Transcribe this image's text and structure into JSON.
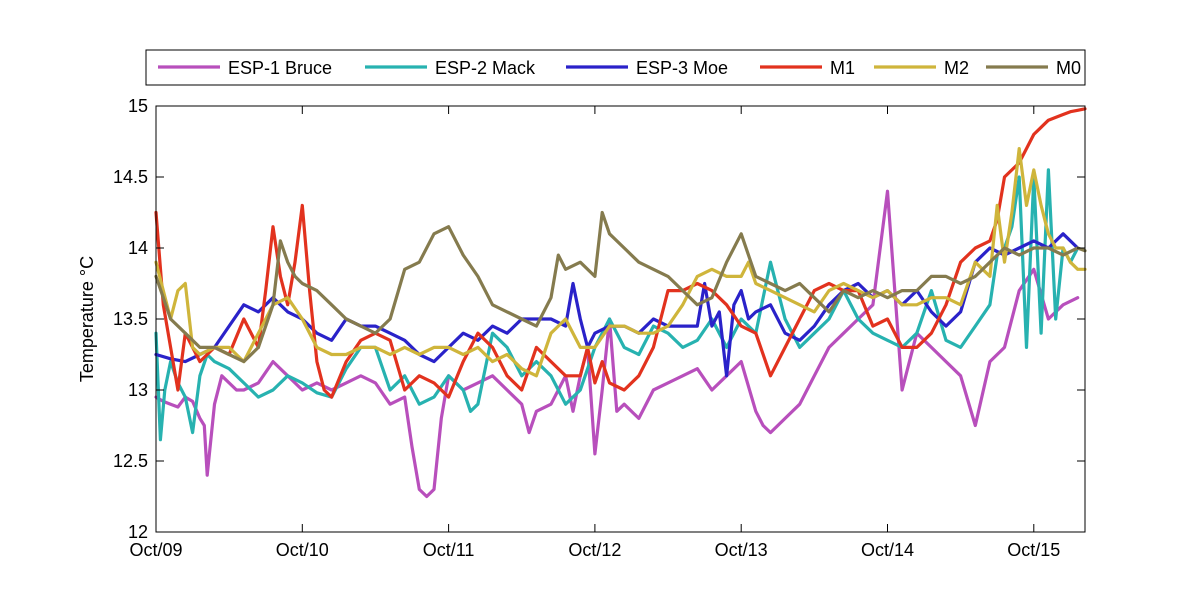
{
  "chart_data": {
    "type": "line",
    "title": "",
    "xlabel": "",
    "ylabel": "Temperature °C",
    "ylim": [
      12,
      15
    ],
    "xlim": [
      0,
      6.35
    ],
    "x_ticks": [
      0,
      1,
      2,
      3,
      4,
      5,
      6
    ],
    "x_tick_labels": [
      "Oct/09",
      "Oct/10",
      "Oct/11",
      "Oct/12",
      "Oct/13",
      "Oct/14",
      "Oct/15"
    ],
    "y_ticks": [
      12,
      12.5,
      13,
      13.5,
      14,
      14.5,
      15
    ],
    "y_tick_labels": [
      "12",
      "12.5",
      "13",
      "13.5",
      "14",
      "14.5",
      "15"
    ],
    "grid": false,
    "legend_position": "top",
    "series": [
      {
        "name": "ESP-1 Bruce",
        "color": "#b84fbc",
        "x": [
          0,
          0.05,
          0.1,
          0.15,
          0.2,
          0.25,
          0.3,
          0.33,
          0.35,
          0.4,
          0.45,
          0.5,
          0.55,
          0.6,
          0.7,
          0.8,
          0.9,
          1.0,
          1.1,
          1.2,
          1.3,
          1.4,
          1.5,
          1.6,
          1.7,
          1.75,
          1.8,
          1.85,
          1.9,
          1.95,
          2.0,
          2.05,
          2.1,
          2.2,
          2.3,
          2.4,
          2.5,
          2.55,
          2.6,
          2.7,
          2.8,
          2.85,
          2.9,
          2.95,
          3.0,
          3.05,
          3.1,
          3.15,
          3.2,
          3.3,
          3.4,
          3.5,
          3.6,
          3.7,
          3.8,
          3.9,
          4.0,
          4.1,
          4.15,
          4.2,
          4.3,
          4.4,
          4.5,
          4.6,
          4.7,
          4.8,
          4.9,
          5.0,
          5.05,
          5.1,
          5.15,
          5.2,
          5.3,
          5.4,
          5.5,
          5.6,
          5.7,
          5.8,
          5.9,
          6.0,
          6.1,
          6.2,
          6.3
        ],
        "values": [
          12.95,
          12.92,
          12.9,
          12.88,
          12.95,
          12.92,
          12.8,
          12.75,
          12.4,
          12.9,
          13.1,
          13.05,
          13.0,
          13.0,
          13.05,
          13.2,
          13.1,
          13.0,
          13.05,
          13.0,
          13.05,
          13.1,
          13.05,
          12.9,
          12.95,
          12.6,
          12.3,
          12.25,
          12.3,
          12.8,
          13.1,
          13.05,
          13.0,
          13.05,
          13.1,
          13.0,
          12.9,
          12.7,
          12.85,
          12.9,
          13.1,
          12.85,
          13.1,
          13.3,
          12.55,
          13.0,
          13.5,
          12.85,
          12.9,
          12.8,
          13.0,
          13.05,
          13.1,
          13.15,
          13.0,
          13.1,
          13.2,
          12.85,
          12.75,
          12.7,
          12.8,
          12.9,
          13.1,
          13.3,
          13.4,
          13.5,
          13.6,
          14.4,
          13.7,
          13.0,
          13.2,
          13.4,
          13.3,
          13.2,
          13.1,
          12.75,
          13.2,
          13.3,
          13.7,
          13.85,
          13.5,
          13.6,
          13.65
        ]
      },
      {
        "name": "ESP-2 Mack",
        "color": "#27b2b0",
        "x": [
          0,
          0.03,
          0.06,
          0.1,
          0.15,
          0.2,
          0.25,
          0.3,
          0.35,
          0.4,
          0.5,
          0.6,
          0.7,
          0.8,
          0.9,
          1.0,
          1.1,
          1.2,
          1.3,
          1.4,
          1.5,
          1.6,
          1.7,
          1.8,
          1.9,
          2.0,
          2.1,
          2.15,
          2.2,
          2.3,
          2.4,
          2.5,
          2.6,
          2.7,
          2.8,
          2.9,
          3.0,
          3.1,
          3.2,
          3.3,
          3.4,
          3.5,
          3.6,
          3.7,
          3.8,
          3.9,
          4.0,
          4.1,
          4.2,
          4.3,
          4.4,
          4.5,
          4.6,
          4.7,
          4.8,
          4.9,
          5.0,
          5.1,
          5.2,
          5.3,
          5.4,
          5.5,
          5.6,
          5.7,
          5.75,
          5.8,
          5.85,
          5.9,
          5.95,
          6.0,
          6.05,
          6.1,
          6.15,
          6.2,
          6.25,
          6.3
        ],
        "values": [
          13.4,
          12.65,
          13.0,
          13.2,
          13.05,
          12.95,
          12.7,
          13.1,
          13.25,
          13.2,
          13.15,
          13.05,
          12.95,
          13.0,
          13.1,
          13.05,
          12.98,
          12.95,
          13.15,
          13.3,
          13.3,
          13.0,
          13.1,
          12.9,
          12.95,
          13.1,
          13.0,
          12.85,
          12.9,
          13.4,
          13.3,
          13.1,
          13.2,
          13.1,
          12.9,
          13.0,
          13.3,
          13.5,
          13.3,
          13.25,
          13.45,
          13.4,
          13.3,
          13.35,
          13.5,
          13.3,
          13.5,
          13.4,
          13.9,
          13.5,
          13.3,
          13.4,
          13.5,
          13.7,
          13.5,
          13.4,
          13.35,
          13.3,
          13.4,
          13.7,
          13.35,
          13.3,
          13.45,
          13.6,
          13.95,
          14.0,
          14.15,
          14.5,
          13.3,
          14.5,
          13.4,
          14.55,
          13.5,
          14.0,
          13.9,
          14.0
        ]
      },
      {
        "name": "ESP-3 Moe",
        "color": "#2a22c9",
        "x": [
          0,
          0.1,
          0.2,
          0.3,
          0.4,
          0.5,
          0.6,
          0.7,
          0.8,
          0.9,
          1.0,
          1.1,
          1.2,
          1.3,
          1.4,
          1.5,
          1.6,
          1.7,
          1.8,
          1.9,
          2.0,
          2.1,
          2.2,
          2.3,
          2.4,
          2.5,
          2.6,
          2.7,
          2.8,
          2.85,
          2.9,
          2.95,
          3.0,
          3.1,
          3.2,
          3.3,
          3.4,
          3.5,
          3.6,
          3.7,
          3.75,
          3.8,
          3.85,
          3.9,
          3.95,
          4.0,
          4.05,
          4.1,
          4.2,
          4.3,
          4.4,
          4.5,
          4.6,
          4.7,
          4.8,
          4.9,
          5.0,
          5.1,
          5.2,
          5.3,
          5.4,
          5.5,
          5.6,
          5.7,
          5.8,
          5.9,
          6.0,
          6.1,
          6.2,
          6.3
        ],
        "values": [
          13.25,
          13.22,
          13.2,
          13.25,
          13.3,
          13.45,
          13.6,
          13.55,
          13.65,
          13.55,
          13.5,
          13.4,
          13.35,
          13.5,
          13.45,
          13.45,
          13.4,
          13.35,
          13.25,
          13.2,
          13.3,
          13.4,
          13.35,
          13.45,
          13.4,
          13.5,
          13.5,
          13.5,
          13.45,
          13.75,
          13.5,
          13.3,
          13.4,
          13.45,
          13.45,
          13.4,
          13.5,
          13.45,
          13.45,
          13.45,
          13.75,
          13.45,
          13.55,
          13.1,
          13.6,
          13.7,
          13.5,
          13.55,
          13.6,
          13.4,
          13.35,
          13.45,
          13.6,
          13.7,
          13.75,
          13.65,
          13.7,
          13.6,
          13.7,
          13.55,
          13.45,
          13.55,
          13.9,
          14.0,
          13.95,
          14.0,
          14.05,
          14.0,
          14.1,
          14.0
        ]
      },
      {
        "name": "M1",
        "color": "#e2321e",
        "x": [
          0,
          0.05,
          0.1,
          0.15,
          0.2,
          0.3,
          0.4,
          0.5,
          0.6,
          0.7,
          0.75,
          0.8,
          0.85,
          0.9,
          0.95,
          1.0,
          1.05,
          1.1,
          1.15,
          1.2,
          1.3,
          1.4,
          1.5,
          1.6,
          1.7,
          1.8,
          1.9,
          2.0,
          2.1,
          2.2,
          2.3,
          2.4,
          2.5,
          2.6,
          2.7,
          2.8,
          2.9,
          2.95,
          3.0,
          3.05,
          3.1,
          3.2,
          3.3,
          3.4,
          3.5,
          3.6,
          3.7,
          3.8,
          3.9,
          4.0,
          4.1,
          4.2,
          4.3,
          4.4,
          4.5,
          4.6,
          4.7,
          4.8,
          4.9,
          5.0,
          5.1,
          5.2,
          5.3,
          5.4,
          5.5,
          5.6,
          5.7,
          5.75,
          5.8,
          5.9,
          6.0,
          6.05,
          6.1,
          6.15,
          6.2,
          6.25,
          6.3,
          6.35
        ],
        "values": [
          14.25,
          13.6,
          13.3,
          13.0,
          13.4,
          13.2,
          13.3,
          13.25,
          13.5,
          13.3,
          13.7,
          14.15,
          13.8,
          13.6,
          13.9,
          14.3,
          13.7,
          13.2,
          13.0,
          12.95,
          13.2,
          13.35,
          13.4,
          13.35,
          13.0,
          13.1,
          13.05,
          12.95,
          13.2,
          13.4,
          13.3,
          13.1,
          13.0,
          13.3,
          13.2,
          13.1,
          13.1,
          13.3,
          13.05,
          13.2,
          13.05,
          13.0,
          13.1,
          13.3,
          13.7,
          13.7,
          13.75,
          13.7,
          13.6,
          13.45,
          13.4,
          13.1,
          13.3,
          13.5,
          13.7,
          13.75,
          13.7,
          13.7,
          13.45,
          13.5,
          13.3,
          13.3,
          13.4,
          13.6,
          13.9,
          14.0,
          14.05,
          14.2,
          14.5,
          14.6,
          14.8,
          14.85,
          14.9,
          14.92,
          14.94,
          14.96,
          14.97,
          14.98
        ]
      },
      {
        "name": "M2",
        "color": "#cfb53b",
        "x": [
          0,
          0.1,
          0.15,
          0.2,
          0.25,
          0.3,
          0.4,
          0.5,
          0.6,
          0.7,
          0.8,
          0.9,
          1.0,
          1.1,
          1.2,
          1.3,
          1.4,
          1.5,
          1.6,
          1.7,
          1.8,
          1.9,
          2.0,
          2.1,
          2.2,
          2.3,
          2.4,
          2.5,
          2.6,
          2.7,
          2.8,
          2.9,
          3.0,
          3.1,
          3.2,
          3.3,
          3.4,
          3.5,
          3.6,
          3.7,
          3.8,
          3.9,
          4.0,
          4.05,
          4.1,
          4.2,
          4.3,
          4.4,
          4.5,
          4.6,
          4.7,
          4.8,
          4.9,
          5.0,
          5.1,
          5.2,
          5.3,
          5.4,
          5.5,
          5.6,
          5.7,
          5.75,
          5.8,
          5.85,
          5.9,
          5.95,
          6.0,
          6.05,
          6.1,
          6.15,
          6.2,
          6.25,
          6.3,
          6.35
        ],
        "values": [
          13.9,
          13.5,
          13.7,
          13.75,
          13.3,
          13.25,
          13.3,
          13.3,
          13.2,
          13.4,
          13.6,
          13.65,
          13.5,
          13.3,
          13.25,
          13.25,
          13.3,
          13.3,
          13.25,
          13.3,
          13.25,
          13.3,
          13.3,
          13.25,
          13.3,
          13.2,
          13.25,
          13.15,
          13.1,
          13.4,
          13.5,
          13.3,
          13.3,
          13.45,
          13.45,
          13.4,
          13.4,
          13.45,
          13.6,
          13.8,
          13.85,
          13.8,
          13.8,
          13.9,
          13.75,
          13.7,
          13.65,
          13.6,
          13.55,
          13.7,
          13.75,
          13.7,
          13.65,
          13.7,
          13.6,
          13.6,
          13.65,
          13.65,
          13.6,
          13.9,
          13.8,
          14.3,
          13.9,
          14.25,
          14.7,
          14.3,
          14.55,
          14.3,
          14.1,
          14.0,
          14.0,
          13.9,
          13.85,
          13.85
        ]
      },
      {
        "name": "M0",
        "color": "#857b4e",
        "x": [
          0,
          0.1,
          0.2,
          0.3,
          0.4,
          0.5,
          0.6,
          0.7,
          0.8,
          0.85,
          0.9,
          0.95,
          1.0,
          1.1,
          1.2,
          1.3,
          1.4,
          1.5,
          1.6,
          1.7,
          1.8,
          1.9,
          2.0,
          2.1,
          2.2,
          2.3,
          2.4,
          2.5,
          2.6,
          2.7,
          2.75,
          2.8,
          2.9,
          3.0,
          3.05,
          3.1,
          3.2,
          3.3,
          3.4,
          3.5,
          3.6,
          3.7,
          3.8,
          3.9,
          4.0,
          4.05,
          4.1,
          4.2,
          4.3,
          4.4,
          4.5,
          4.6,
          4.7,
          4.8,
          4.9,
          5.0,
          5.1,
          5.2,
          5.3,
          5.4,
          5.5,
          5.6,
          5.7,
          5.8,
          5.9,
          6.0,
          6.1,
          6.2,
          6.3,
          6.35
        ],
        "values": [
          13.8,
          13.5,
          13.4,
          13.3,
          13.3,
          13.25,
          13.2,
          13.3,
          13.6,
          14.05,
          13.9,
          13.8,
          13.75,
          13.7,
          13.6,
          13.5,
          13.45,
          13.4,
          13.5,
          13.85,
          13.9,
          14.1,
          14.15,
          13.95,
          13.8,
          13.6,
          13.55,
          13.5,
          13.45,
          13.65,
          13.95,
          13.85,
          13.9,
          13.8,
          14.25,
          14.1,
          14.0,
          13.9,
          13.85,
          13.8,
          13.7,
          13.6,
          13.65,
          13.9,
          14.1,
          13.95,
          13.8,
          13.75,
          13.7,
          13.75,
          13.65,
          13.55,
          13.7,
          13.65,
          13.7,
          13.65,
          13.7,
          13.7,
          13.8,
          13.8,
          13.75,
          13.8,
          13.9,
          14.0,
          13.95,
          14.0,
          14.0,
          13.95,
          14.0,
          13.98
        ]
      }
    ]
  }
}
